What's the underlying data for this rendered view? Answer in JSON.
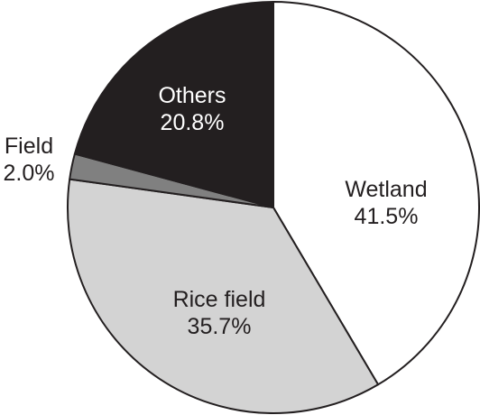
{
  "chart_data": {
    "type": "pie",
    "title": "",
    "slices": [
      {
        "label": "Wetland",
        "value": 41.5,
        "value_text": "41.5%",
        "color": "#ffffff",
        "text_color": "#231f20"
      },
      {
        "label": "Rice field",
        "value": 35.7,
        "value_text": "35.7%",
        "color": "#d3d3d3",
        "text_color": "#231f20"
      },
      {
        "label": "Field",
        "value": 2.0,
        "value_text": "2.0%",
        "color": "#808080",
        "text_color": "#231f20"
      },
      {
        "label": "Others",
        "value": 20.8,
        "value_text": "20.8%",
        "color": "#231f20",
        "text_color": "#ffffff"
      }
    ],
    "start_angle": "12 o'clock",
    "direction": "clockwise",
    "legend": "none"
  }
}
